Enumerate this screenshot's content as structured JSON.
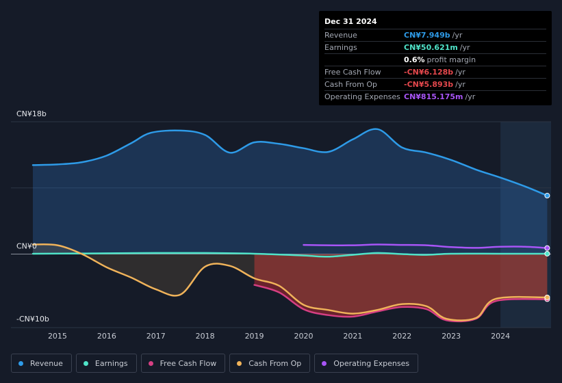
{
  "tooltip": {
    "date": "Dec 31 2024",
    "rows": [
      {
        "label": "Revenue",
        "value": "CN¥7.949b",
        "unit": "/yr",
        "color": "#2e9be8"
      },
      {
        "label": "Earnings",
        "value": "CN¥50.621m",
        "unit": "/yr",
        "color": "#4fe3c8"
      },
      {
        "label": "",
        "value": "0.6%",
        "unit": "profit margin",
        "color": "#ffffff"
      },
      {
        "label": "Free Cash Flow",
        "value": "-CN¥6.128b",
        "unit": "/yr",
        "color": "#e5484d"
      },
      {
        "label": "Cash From Op",
        "value": "-CN¥5.893b",
        "unit": "/yr",
        "color": "#e5484d"
      },
      {
        "label": "Operating Expenses",
        "value": "CN¥815.175m",
        "unit": "/yr",
        "color": "#a855f7"
      }
    ]
  },
  "legend": [
    {
      "label": "Revenue",
      "color": "#2e9be8"
    },
    {
      "label": "Earnings",
      "color": "#4fe3c8"
    },
    {
      "label": "Free Cash Flow",
      "color": "#d63f83"
    },
    {
      "label": "Cash From Op",
      "color": "#f0b35a"
    },
    {
      "label": "Operating Expenses",
      "color": "#a855f7"
    }
  ],
  "chart_data": {
    "type": "line",
    "units": "CN¥ billions",
    "ylim": [
      -10,
      18
    ],
    "xlim": [
      2014.5,
      2025.0
    ],
    "y_tick_labels": [
      {
        "value": 18,
        "label": "CN¥18b"
      },
      {
        "value": 0,
        "label": "CN¥0"
      },
      {
        "value": -10,
        "label": "-CN¥10b"
      }
    ],
    "x_ticks": [
      2015,
      2016,
      2017,
      2018,
      2019,
      2020,
      2021,
      2022,
      2023,
      2024
    ],
    "highlight_start": 2024.0,
    "series": [
      {
        "name": "Revenue",
        "color": "#2e9be8",
        "fill": true,
        "points": [
          [
            2014.5,
            12.1
          ],
          [
            2015.0,
            12.2
          ],
          [
            2015.5,
            12.5
          ],
          [
            2016.0,
            13.4
          ],
          [
            2016.5,
            15.1
          ],
          [
            2016.9,
            16.5
          ],
          [
            2017.5,
            16.8
          ],
          [
            2018.0,
            16.2
          ],
          [
            2018.5,
            13.8
          ],
          [
            2019.0,
            15.2
          ],
          [
            2019.5,
            15.0
          ],
          [
            2020.0,
            14.4
          ],
          [
            2020.5,
            13.9
          ],
          [
            2021.0,
            15.6
          ],
          [
            2021.5,
            17.0
          ],
          [
            2022.0,
            14.5
          ],
          [
            2022.5,
            13.8
          ],
          [
            2023.0,
            12.8
          ],
          [
            2023.5,
            11.5
          ],
          [
            2024.0,
            10.4
          ],
          [
            2024.5,
            9.2
          ],
          [
            2024.95,
            7.95
          ]
        ]
      },
      {
        "name": "Earnings",
        "color": "#4fe3c8",
        "points": [
          [
            2014.5,
            0.05
          ],
          [
            2016.0,
            0.1
          ],
          [
            2017.0,
            0.15
          ],
          [
            2018.0,
            0.15
          ],
          [
            2019.0,
            0.05
          ],
          [
            2020.0,
            -0.2
          ],
          [
            2020.5,
            -0.35
          ],
          [
            2021.0,
            -0.1
          ],
          [
            2021.5,
            0.15
          ],
          [
            2022.0,
            0.0
          ],
          [
            2022.5,
            -0.1
          ],
          [
            2023.0,
            0.05
          ],
          [
            2024.0,
            0.05
          ],
          [
            2024.95,
            0.05
          ]
        ]
      },
      {
        "name": "Free Cash Flow",
        "color": "#d63f83",
        "fill": true,
        "fill_color": "#7a2630",
        "points": [
          [
            2019.0,
            -4.2
          ],
          [
            2019.5,
            -5.2
          ],
          [
            2020.0,
            -7.5
          ],
          [
            2020.5,
            -8.3
          ],
          [
            2021.0,
            -8.5
          ],
          [
            2021.5,
            -7.8
          ],
          [
            2022.0,
            -7.2
          ],
          [
            2022.5,
            -7.5
          ],
          [
            2022.9,
            -9.0
          ],
          [
            2023.5,
            -8.8
          ],
          [
            2023.9,
            -6.4
          ],
          [
            2024.95,
            -6.13
          ]
        ]
      },
      {
        "name": "Cash From Op",
        "color": "#f0b35a",
        "fill": true,
        "points": [
          [
            2014.5,
            1.3
          ],
          [
            2015.0,
            1.2
          ],
          [
            2015.5,
            0.0
          ],
          [
            2016.0,
            -1.8
          ],
          [
            2016.5,
            -3.2
          ],
          [
            2017.0,
            -4.8
          ],
          [
            2017.5,
            -5.5
          ],
          [
            2018.0,
            -1.7
          ],
          [
            2018.5,
            -1.6
          ],
          [
            2019.0,
            -3.3
          ],
          [
            2019.5,
            -4.3
          ],
          [
            2020.0,
            -6.9
          ],
          [
            2020.5,
            -7.6
          ],
          [
            2021.0,
            -8.1
          ],
          [
            2021.5,
            -7.6
          ],
          [
            2022.0,
            -6.8
          ],
          [
            2022.5,
            -7.1
          ],
          [
            2022.9,
            -8.8
          ],
          [
            2023.5,
            -8.7
          ],
          [
            2023.9,
            -6.1
          ],
          [
            2024.95,
            -5.89
          ]
        ]
      },
      {
        "name": "Operating Expenses",
        "color": "#a855f7",
        "points": [
          [
            2020.0,
            1.25
          ],
          [
            2020.5,
            1.2
          ],
          [
            2021.0,
            1.2
          ],
          [
            2021.5,
            1.3
          ],
          [
            2022.0,
            1.25
          ],
          [
            2022.5,
            1.2
          ],
          [
            2023.0,
            0.95
          ],
          [
            2023.5,
            0.85
          ],
          [
            2024.0,
            1.0
          ],
          [
            2024.5,
            1.0
          ],
          [
            2024.95,
            0.82
          ]
        ]
      }
    ]
  }
}
